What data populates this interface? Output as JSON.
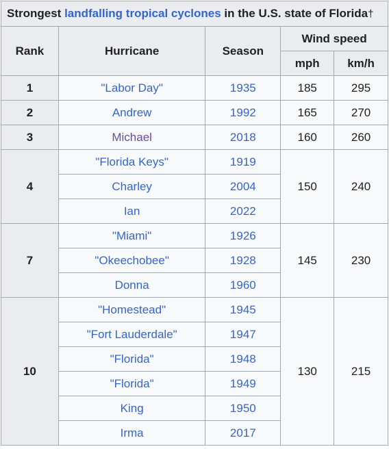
{
  "caption": {
    "prefix": "Strongest ",
    "link": "landfalling tropical cyclones",
    "suffix": " in the U.S. state of Florida",
    "dagger": "†"
  },
  "headers": {
    "rank": "Rank",
    "hurricane": "Hurricane",
    "season": "Season",
    "wind_speed": "Wind speed",
    "mph": "mph",
    "kmh": "km/h"
  },
  "groups": [
    {
      "rank": "1",
      "mph": "185",
      "kmh": "295",
      "rows": [
        {
          "name": "\"Labor Day\"",
          "season": "1935",
          "visited": false
        }
      ]
    },
    {
      "rank": "2",
      "mph": "165",
      "kmh": "270",
      "rows": [
        {
          "name": "Andrew",
          "season": "1992",
          "visited": false
        }
      ]
    },
    {
      "rank": "3",
      "mph": "160",
      "kmh": "260",
      "rows": [
        {
          "name": "Michael",
          "season": "2018",
          "visited": true
        }
      ]
    },
    {
      "rank": "4",
      "mph": "150",
      "kmh": "240",
      "rows": [
        {
          "name": "\"Florida Keys\"",
          "season": "1919",
          "visited": false
        },
        {
          "name": "Charley",
          "season": "2004",
          "visited": false
        },
        {
          "name": "Ian",
          "season": "2022",
          "visited": false
        }
      ]
    },
    {
      "rank": "7",
      "mph": "145",
      "kmh": "230",
      "rows": [
        {
          "name": "\"Miami\"",
          "season": "1926",
          "visited": false
        },
        {
          "name": "\"Okeechobee\"",
          "season": "1928",
          "visited": false
        },
        {
          "name": "Donna",
          "season": "1960",
          "visited": false
        }
      ]
    },
    {
      "rank": "10",
      "mph": "130",
      "kmh": "215",
      "rows": [
        {
          "name": "\"Homestead\"",
          "season": "1945",
          "visited": false
        },
        {
          "name": "\"Fort Lauderdale\"",
          "season": "1947",
          "visited": false
        },
        {
          "name": "\"Florida\"",
          "season": "1948",
          "visited": false
        },
        {
          "name": "\"Florida\"",
          "season": "1949",
          "visited": false
        },
        {
          "name": "King",
          "season": "1950",
          "visited": false
        },
        {
          "name": "Irma",
          "season": "2017",
          "visited": false
        }
      ]
    }
  ]
}
